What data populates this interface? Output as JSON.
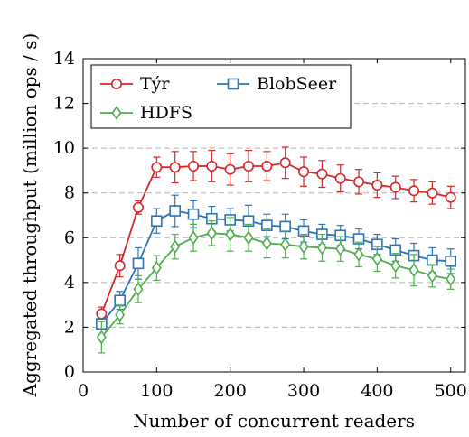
{
  "chart_data": {
    "type": "line",
    "xlabel": "Number of concurrent readers",
    "ylabel": "Aggregated throughput (million ops / s)",
    "xlim": [
      0,
      520
    ],
    "ylim": [
      0,
      14
    ],
    "x_ticks": [
      0,
      100,
      200,
      300,
      400,
      500
    ],
    "y_ticks": [
      0,
      2,
      4,
      6,
      8,
      10,
      12,
      14
    ],
    "x_tick_labels": [
      "0",
      "100",
      "200",
      "300",
      "400",
      "500"
    ],
    "y_tick_labels": [
      "0",
      "2",
      "4",
      "6",
      "8",
      "10",
      "12",
      "14"
    ],
    "grid": "horizontal dashed",
    "legend_position": "top-left",
    "x": [
      25,
      50,
      75,
      100,
      125,
      150,
      175,
      200,
      225,
      250,
      275,
      300,
      325,
      350,
      375,
      400,
      425,
      450,
      475,
      500
    ],
    "series": [
      {
        "name": "Týr",
        "color": "#d62728",
        "marker": "circle",
        "values": [
          2.6,
          4.75,
          7.35,
          9.15,
          9.15,
          9.2,
          9.2,
          9.05,
          9.2,
          9.2,
          9.35,
          8.95,
          8.85,
          8.65,
          8.5,
          8.35,
          8.25,
          8.1,
          8.0,
          7.8
        ],
        "errors": [
          0.3,
          0.5,
          0.3,
          0.45,
          0.7,
          0.65,
          0.7,
          0.7,
          0.7,
          0.65,
          0.7,
          0.65,
          0.6,
          0.6,
          0.55,
          0.55,
          0.5,
          0.5,
          0.5,
          0.5
        ]
      },
      {
        "name": "BlobSeer",
        "color": "#2e74b5",
        "marker": "square",
        "values": [
          2.15,
          3.2,
          4.85,
          6.75,
          7.2,
          7.05,
          6.85,
          6.8,
          6.75,
          6.55,
          6.5,
          6.3,
          6.15,
          6.1,
          5.95,
          5.7,
          5.45,
          5.2,
          5.0,
          4.95
        ],
        "errors": [
          0.2,
          0.4,
          0.7,
          0.55,
          0.7,
          0.6,
          0.55,
          0.5,
          0.7,
          0.5,
          0.55,
          0.5,
          0.45,
          0.45,
          0.45,
          0.45,
          0.5,
          0.55,
          0.55,
          0.55
        ]
      },
      {
        "name": "HDFS",
        "color": "#4daf4a",
        "marker": "diamond",
        "values": [
          1.55,
          2.55,
          3.7,
          4.65,
          5.6,
          6.0,
          6.2,
          6.15,
          6.0,
          5.75,
          5.7,
          5.6,
          5.55,
          5.5,
          5.25,
          5.05,
          4.75,
          4.55,
          4.3,
          4.15
        ],
        "errors": [
          0.7,
          0.4,
          0.6,
          0.55,
          0.55,
          0.6,
          0.55,
          0.75,
          0.6,
          0.65,
          0.6,
          0.55,
          0.6,
          0.55,
          0.55,
          0.55,
          0.55,
          0.7,
          0.5,
          0.45
        ]
      }
    ]
  }
}
